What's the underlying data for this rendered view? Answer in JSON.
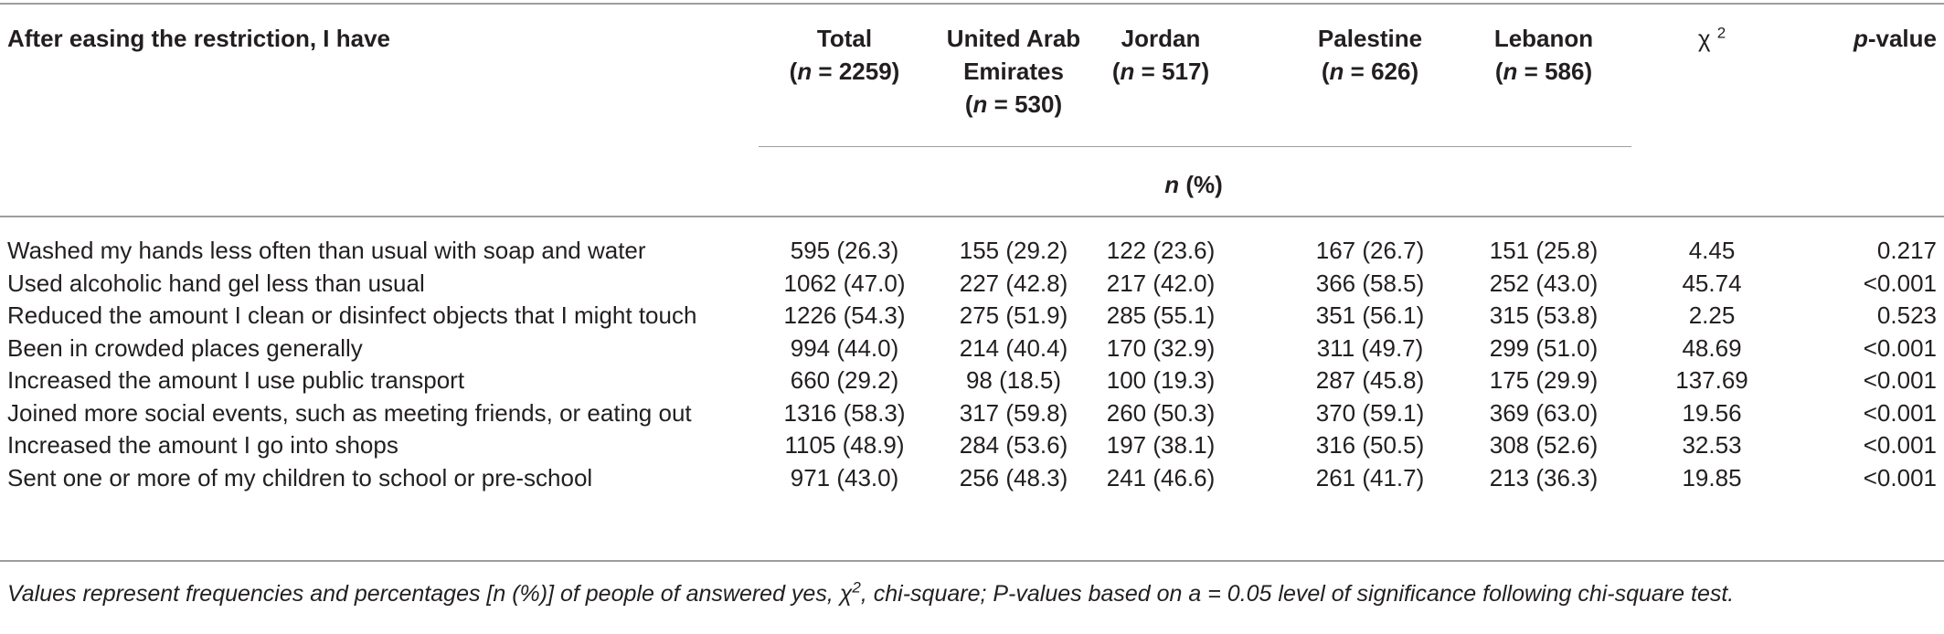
{
  "header": {
    "row_label": "After easing the restriction, I have",
    "columns": [
      {
        "name": "Total",
        "n_label": "n",
        "n_value": " = 2259)"
      },
      {
        "name_lines": [
          "United Arab",
          "Emirates"
        ],
        "n_label": "n",
        "n_value": " = 530)"
      },
      {
        "name": "Jordan",
        "n_label": "n",
        "n_value": " = 517)"
      },
      {
        "name": "Palestine",
        "n_label": "n",
        "n_value": " = 626)"
      },
      {
        "name": "Lebanon",
        "n_label": "n",
        "n_value": " = 586)"
      }
    ],
    "chi": "χ",
    "chi_sup": "2",
    "pvalue_p": "p",
    "pvalue_rest": "-value",
    "subheader_n": "n",
    "subheader_rest": " (%)",
    "open_paren": "("
  },
  "rows": [
    {
      "label": "Washed my hands less often than usual with soap and water",
      "total": "595 (26.3)",
      "uae": "155 (29.2)",
      "jordan": "122 (23.6)",
      "palestine": "167 (26.7)",
      "lebanon": "151 (25.8)",
      "chi2": "4.45",
      "p": "0.217"
    },
    {
      "label": "Used alcoholic hand gel less than usual",
      "total": "1062 (47.0)",
      "uae": "227 (42.8)",
      "jordan": "217 (42.0)",
      "palestine": "366 (58.5)",
      "lebanon": "252 (43.0)",
      "chi2": "45.74",
      "p": "<0.001"
    },
    {
      "label": "Reduced the amount I clean or disinfect objects that I might touch",
      "total": "1226 (54.3)",
      "uae": "275 (51.9)",
      "jordan": "285 (55.1)",
      "palestine": "351 (56.1)",
      "lebanon": "315 (53.8)",
      "chi2": "2.25",
      "p": "0.523"
    },
    {
      "label": "Been in crowded places generally",
      "total": "994 (44.0)",
      "uae": "214 (40.4)",
      "jordan": "170 (32.9)",
      "palestine": "311 (49.7)",
      "lebanon": "299 (51.0)",
      "chi2": "48.69",
      "p": "<0.001"
    },
    {
      "label": "Increased the amount I use public transport",
      "total": "660 (29.2)",
      "uae": "98 (18.5)",
      "jordan": "100 (19.3)",
      "palestine": "287 (45.8)",
      "lebanon": "175 (29.9)",
      "chi2": "137.69",
      "p": "<0.001"
    },
    {
      "label": "Joined more social events, such as meeting friends, or eating out",
      "total": "1316 (58.3)",
      "uae": "317 (59.8)",
      "jordan": "260 (50.3)",
      "palestine": "370 (59.1)",
      "lebanon": "369 (63.0)",
      "chi2": "19.56",
      "p": "<0.001"
    },
    {
      "label": "Increased the amount I go into shops",
      "total": "1105 (48.9)",
      "uae": "284 (53.6)",
      "jordan": "197 (38.1)",
      "palestine": "316 (50.5)",
      "lebanon": "308 (52.6)",
      "chi2": "32.53",
      "p": "<0.001"
    },
    {
      "label": "Sent one or more of my children to school or pre-school",
      "total": "971 (43.0)",
      "uae": "256 (48.3)",
      "jordan": "241 (46.6)",
      "palestine": "261 (41.7)",
      "lebanon": "213 (36.3)",
      "chi2": "19.85",
      "p": "<0.001"
    }
  ],
  "footnote": {
    "before_chi": "Values represent frequencies and percentages [n (%)] of people of answered yes, ",
    "chi": "χ",
    "chi_sup": "2",
    "after_chi": ", chi-square; P-values based on a = 0.05 level of significance following chi-square test."
  }
}
